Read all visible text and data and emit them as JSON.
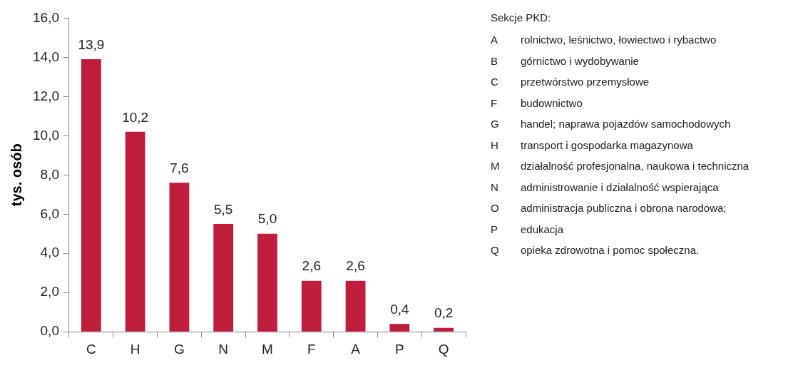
{
  "chart_data": {
    "type": "bar",
    "ylabel": "tys. osób",
    "categories": [
      "C",
      "H",
      "G",
      "N",
      "M",
      "F",
      "A",
      "P",
      "Q"
    ],
    "values": [
      13.9,
      10.2,
      7.6,
      5.5,
      5.0,
      2.6,
      2.6,
      0.4,
      0.2
    ],
    "value_labels": [
      "13,9",
      "10,2",
      "7,6",
      "5,5",
      "5,0",
      "2,6",
      "2,6",
      "0,4",
      "0,2"
    ],
    "color": "#be1e3c",
    "ylim": [
      0,
      16
    ],
    "yticks": [
      {
        "value": 0,
        "label": "0,0"
      },
      {
        "value": 2,
        "label": "2,0"
      },
      {
        "value": 4,
        "label": "4,0"
      },
      {
        "value": 6,
        "label": "6,0"
      },
      {
        "value": 8,
        "label": "8,0"
      },
      {
        "value": 10,
        "label": "10,0"
      },
      {
        "value": 12,
        "label": "12,0"
      },
      {
        "value": 14,
        "label": "14,0"
      },
      {
        "value": 16,
        "label": "16,0"
      }
    ],
    "grid": false,
    "legend": false,
    "annotations": [
      "Sekcje PKD:",
      "A rolnictwo, leśnictwo, łowiectwo i rybactwo",
      "B górnictwo i wydobywanie",
      "C przetwórstwo przemysłowe",
      "F budownictwo",
      "G handel; naprawa pojazdów samochodowych",
      "H transport i gospodarka magazynowa",
      "M działalność profesjonalna, naukowa i techniczna",
      "N administrowanie i działalność wspierająca",
      "O administracja publiczna i obrona narodowa;",
      "P edukacja",
      "Q opieka zdrowotna i pomoc społeczna."
    ]
  }
}
